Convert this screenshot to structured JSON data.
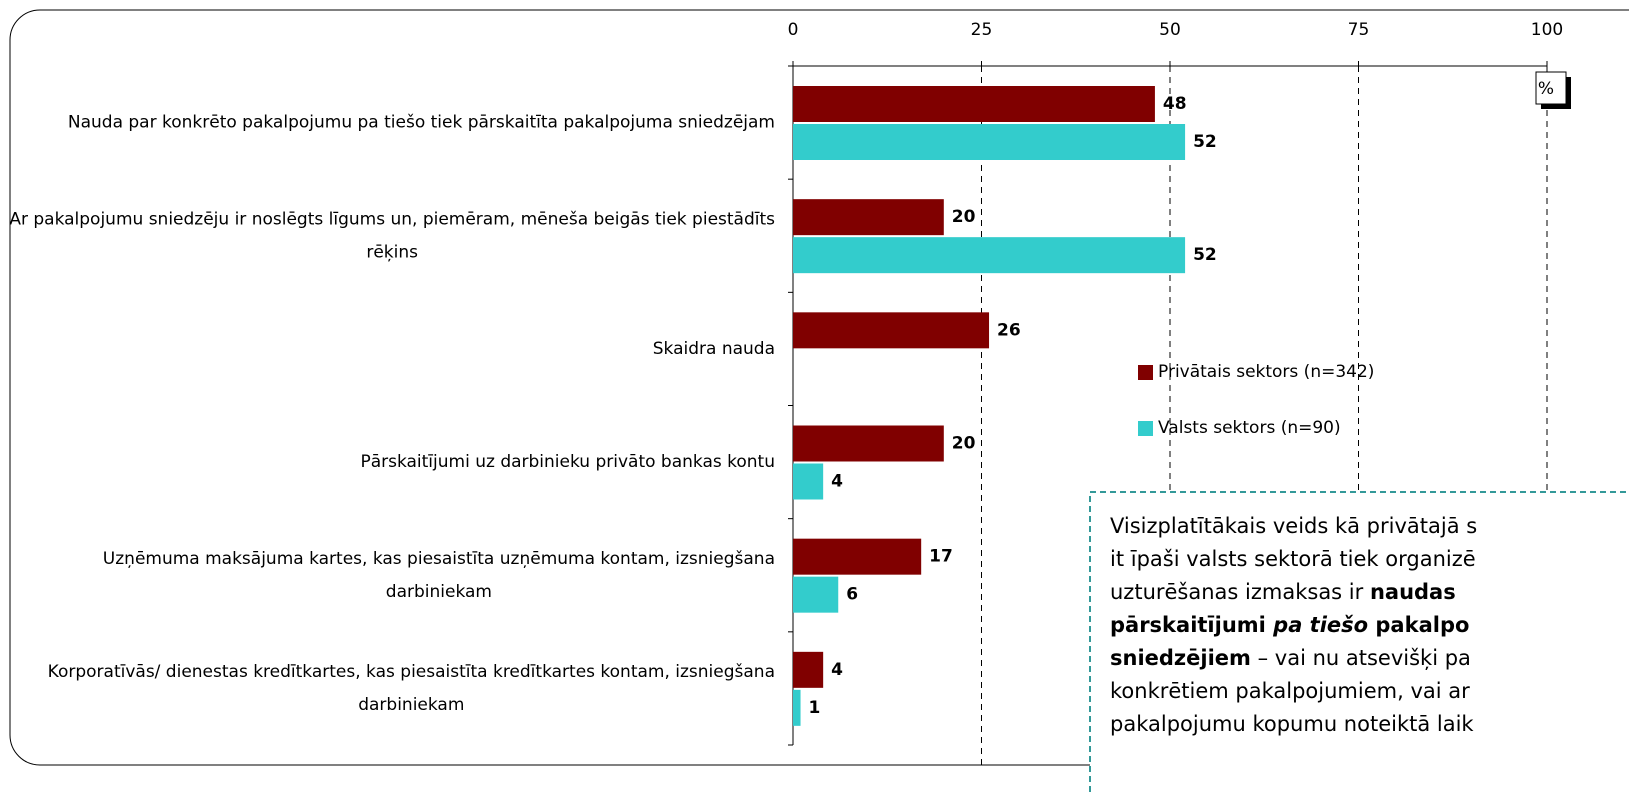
{
  "chart_data": {
    "type": "bar",
    "orientation": "horizontal",
    "categories": [
      "Nauda par konkrēto pakalpojumu pa tiešo tiek pārskaitīta pakalpojuma sniedzējam",
      "Ar pakalpojumu sniedzēju ir noslēgts līgums un, piemēram, mēneša beigās tiek piestādīts rēķins",
      "Skaidra nauda",
      "Pārskaitījumi uz darbinieku privāto bankas kontu",
      "Uzņēmuma maksājuma kartes, kas piesaistīta uzņēmuma kontam, izsniegšana darbiniekam",
      "Korporatīvās/ dienestas kredītkartes, kas piesaistīta kredītkartes kontam, izsniegšana darbiniekam"
    ],
    "series": [
      {
        "name": "Privātais sektors (n=342)",
        "color": "#800000",
        "values": [
          48,
          20,
          26,
          20,
          17,
          4
        ]
      },
      {
        "name": "Valsts sektors (n=90)",
        "color": "#33cccc",
        "values": [
          52,
          52,
          null,
          4,
          6,
          1
        ]
      }
    ],
    "xlim": [
      0,
      100
    ],
    "xticks": [
      0,
      25,
      50,
      75,
      100
    ],
    "grid": true,
    "unit": "%",
    "annotation": [
      [
        {
          "text": "Visizplatītākais veids kā privātajā s",
          "style": "normal"
        }
      ],
      [
        {
          "text": "it īpaši valsts sektorā tiek organizē",
          "style": "normal"
        }
      ],
      [
        {
          "text": "uzturēšanas izmaksas ir ",
          "style": "normal"
        },
        {
          "text": "naudas",
          "style": "bold"
        }
      ],
      [
        {
          "text": "pārskaitījumi ",
          "style": "bold"
        },
        {
          "text": "pa tiešo",
          "style": "bold-italic"
        },
        {
          "text": " pakalpo",
          "style": "bold"
        }
      ],
      [
        {
          "text": "sniedzējiem",
          "style": "bold"
        },
        {
          "text": " – vai nu atsevišķi pa",
          "style": "normal"
        }
      ],
      [
        {
          "text": "konkrētiem pakalpojumiem, vai ar",
          "style": "normal"
        }
      ],
      [
        {
          "text": "pakalpojumu kopumu noteiktā laik",
          "style": "normal"
        }
      ]
    ]
  }
}
